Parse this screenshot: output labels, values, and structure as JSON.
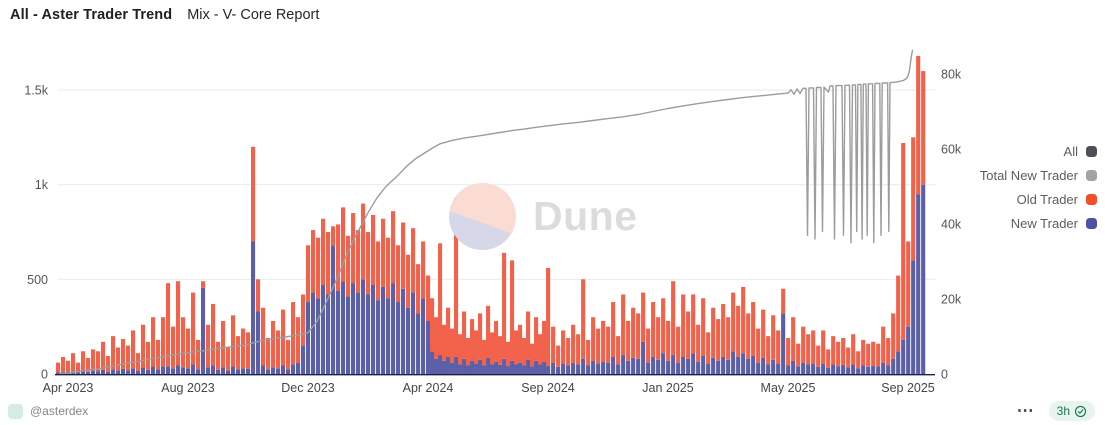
{
  "header": {
    "title": "All - Aster Trader Trend",
    "subtitle": "Mix - V- Core Report"
  },
  "watermark": {
    "brand": "Dune"
  },
  "legend": {
    "items": [
      {
        "label": "All",
        "color": "#4e4e56"
      },
      {
        "label": "Total New Trader",
        "color": "#a3a3a3"
      },
      {
        "label": "Old Trader",
        "color": "#f14e2a"
      },
      {
        "label": "New Trader",
        "color": "#4c52a5"
      }
    ]
  },
  "footer": {
    "handle": "@asterdex",
    "more_icon": "⋯",
    "refresh_age": "3h"
  },
  "chart_data": {
    "type": "bar",
    "note": "stacked daily bars (New Trader bottom, Old Trader top, left axis) plus cumulative Total New Trader line (right axis); values sampled ~5-day resolution",
    "left_axis": {
      "ticks": [
        "0",
        "500",
        "1k",
        "1.5k"
      ],
      "values": [
        0,
        500,
        1000,
        1500
      ],
      "max": 1750
    },
    "right_axis": {
      "ticks": [
        "0",
        "20k",
        "40k",
        "60k",
        "80k"
      ],
      "values": [
        0,
        20,
        40,
        60,
        80
      ],
      "unit": "thousand traders",
      "max": 88
    },
    "x_axis": {
      "ticks": [
        {
          "label": "Apr 2023",
          "m": 0
        },
        {
          "label": "Aug 2023",
          "m": 4
        },
        {
          "label": "Dec 2023",
          "m": 8
        },
        {
          "label": "Apr 2024",
          "m": 12
        },
        {
          "label": "Sep 2024",
          "m": 17
        },
        {
          "label": "Jan 2025",
          "m": 21
        },
        {
          "label": "May 2025",
          "m": 25
        },
        {
          "label": "Sep 2025",
          "m": 29
        }
      ],
      "anchor_months": [
        0,
        4,
        8,
        12,
        17,
        21,
        25,
        29
      ]
    },
    "sampling": {
      "start_m": -0.333,
      "step_m": 0.1667
    },
    "series": [
      {
        "name": "New Trader",
        "type": "bar",
        "axis": "left",
        "color": "#5a5fa8",
        "values": [
          8,
          12,
          10,
          14,
          9,
          16,
          12,
          18,
          15,
          22,
          12,
          25,
          18,
          28,
          20,
          30,
          16,
          34,
          22,
          40,
          25,
          40,
          40,
          30,
          45,
          35,
          30,
          50,
          25,
          455,
          35,
          45,
          22,
          35,
          18,
          40,
          25,
          30,
          28,
          700,
          330,
          45,
          25,
          35,
          30,
          45,
          25,
          50,
          60,
          150,
          380,
          430,
          400,
          470,
          420,
          680,
          440,
          490,
          410,
          480,
          430,
          500,
          420,
          470,
          390,
          460,
          400,
          480,
          380,
          450,
          350,
          430,
          320,
          400,
          280,
          120,
          80,
          100,
          70,
          90,
          60,
          90,
          50,
          80,
          45,
          70,
          55,
          75,
          45,
          85,
          50,
          65,
          48,
          80,
          42,
          70,
          52,
          60,
          45,
          75,
          40,
          70,
          50,
          65,
          42,
          60,
          38,
          55,
          45,
          58,
          50,
          80,
          45,
          70,
          55,
          65,
          60,
          90,
          50,
          100,
          70,
          85,
          80,
          170,
          60,
          90,
          75,
          110,
          70,
          100,
          60,
          90,
          80,
          110,
          65,
          95,
          55,
          85,
          70,
          90,
          75,
          120,
          90,
          110,
          80,
          95,
          60,
          85,
          50,
          75,
          55,
          320,
          45,
          70,
          40,
          60,
          50,
          55,
          38,
          55,
          32,
          50,
          40,
          48,
          35,
          50,
          30,
          45,
          38,
          42,
          40,
          60,
          45,
          80,
          120,
          180,
          250,
          600,
          950,
          1000
        ]
      },
      {
        "name": "Old Trader",
        "type": "bar",
        "axis": "left",
        "color": "#f2614a",
        "values": [
          52,
          78,
          60,
          96,
          51,
          104,
          73,
          112,
          105,
          148,
          83,
          175,
          122,
          157,
          130,
          200,
          94,
          226,
          148,
          260,
          155,
          260,
          440,
          220,
          445,
          265,
          210,
          380,
          155,
          35,
          225,
          325,
          148,
          245,
          122,
          270,
          175,
          210,
          192,
          500,
          170,
          305,
          165,
          245,
          200,
          295,
          155,
          330,
          240,
          270,
          300,
          330,
          320,
          350,
          330,
          100,
          350,
          390,
          320,
          370,
          330,
          400,
          330,
          370,
          310,
          360,
          320,
          380,
          300,
          350,
          280,
          340,
          260,
          300,
          240,
          280,
          220,
          590,
          190,
          260,
          180,
          840,
          160,
          250,
          145,
          220,
          175,
          245,
          135,
          275,
          170,
          215,
          152,
          560,
          128,
          530,
          178,
          200,
          145,
          255,
          120,
          230,
          160,
          215,
          518,
          190,
          112,
          175,
          145,
          202,
          160,
          420,
          135,
          230,
          185,
          215,
          190,
          290,
          150,
          320,
          210,
          265,
          240,
          260,
          180,
          290,
          225,
          290,
          210,
          390,
          190,
          330,
          250,
          310,
          195,
          305,
          165,
          265,
          220,
          280,
          225,
          310,
          270,
          350,
          240,
          285,
          180,
          255,
          150,
          235,
          175,
          130,
          145,
          230,
          120,
          190,
          160,
          175,
          112,
          175,
          98,
          150,
          130,
          142,
          105,
          160,
          90,
          135,
          122,
          128,
          120,
          190,
          145,
          240,
          400,
          1040,
          450,
          650,
          730,
          600
        ]
      },
      {
        "name": "Total New Trader",
        "type": "line",
        "axis": "right",
        "color": "#9c9c9c",
        "points": [
          [
            -0.3,
            0.1
          ],
          [
            0,
            0.25
          ],
          [
            0.5,
            0.8
          ],
          [
            1,
            1.4
          ],
          [
            1.5,
            2.1
          ],
          [
            2,
            2.9
          ],
          [
            2.5,
            3.6
          ],
          [
            3,
            4.4
          ],
          [
            3.5,
            5.1
          ],
          [
            4,
            5.7
          ],
          [
            4.5,
            6.2
          ],
          [
            5,
            6.8
          ],
          [
            5.5,
            7.3
          ],
          [
            6,
            7.9
          ],
          [
            6.3,
            8.6
          ],
          [
            6.6,
            9.1
          ],
          [
            7,
            9.6
          ],
          [
            7.5,
            10.2
          ],
          [
            8,
            11
          ],
          [
            8.3,
            14
          ],
          [
            8.6,
            19
          ],
          [
            9,
            26
          ],
          [
            9.3,
            32
          ],
          [
            9.6,
            37
          ],
          [
            10,
            43
          ],
          [
            10.3,
            47
          ],
          [
            10.6,
            50
          ],
          [
            11,
            53
          ],
          [
            11.3,
            55.5
          ],
          [
            11.6,
            57.5
          ],
          [
            12,
            59.5
          ],
          [
            12.2,
            60.3
          ],
          [
            12.5,
            61.4
          ],
          [
            13,
            62.3
          ],
          [
            13.5,
            62.9
          ],
          [
            14,
            63.4
          ],
          [
            14.5,
            63.9
          ],
          [
            15,
            64.4
          ],
          [
            15.5,
            64.9
          ],
          [
            16,
            65.3
          ],
          [
            16.5,
            65.8
          ],
          [
            17,
            66.2
          ],
          [
            17.5,
            66.7
          ],
          [
            18,
            67.1
          ],
          [
            18.5,
            67.6
          ],
          [
            19,
            68.1
          ],
          [
            19.5,
            68.6
          ],
          [
            20,
            69.2
          ],
          [
            20.5,
            70
          ],
          [
            21,
            70.8
          ],
          [
            21.5,
            71.5
          ],
          [
            22,
            72.1
          ],
          [
            22.5,
            72.7
          ],
          [
            23,
            73.2
          ],
          [
            23.5,
            73.7
          ],
          [
            24,
            74.1
          ],
          [
            24.5,
            74.5
          ],
          [
            25,
            74.9
          ],
          [
            25.1,
            75.8
          ],
          [
            25.2,
            74.6
          ],
          [
            25.3,
            76
          ],
          [
            25.4,
            74.8
          ],
          [
            25.5,
            76.2
          ],
          [
            25.6,
            76.2
          ],
          [
            25.65,
            37
          ],
          [
            25.7,
            76.3
          ],
          [
            25.85,
            76.3
          ],
          [
            25.9,
            36
          ],
          [
            25.95,
            76.4
          ],
          [
            26.1,
            76.4
          ],
          [
            26.15,
            38
          ],
          [
            26.2,
            76.5
          ],
          [
            26.35,
            75.2
          ],
          [
            26.4,
            76.8
          ],
          [
            26.5,
            76.8
          ],
          [
            26.55,
            36
          ],
          [
            26.6,
            76.9
          ],
          [
            26.8,
            76.9
          ],
          [
            26.85,
            37
          ],
          [
            26.9,
            77
          ],
          [
            27.05,
            77
          ],
          [
            27.1,
            35
          ],
          [
            27.15,
            77.1
          ],
          [
            27.25,
            77.1
          ],
          [
            27.29,
            38
          ],
          [
            27.33,
            77.2
          ],
          [
            27.43,
            77.2
          ],
          [
            27.47,
            36
          ],
          [
            27.51,
            77.3
          ],
          [
            27.6,
            77.3
          ],
          [
            27.64,
            37
          ],
          [
            27.68,
            77.4
          ],
          [
            27.82,
            77.4
          ],
          [
            27.86,
            35
          ],
          [
            27.9,
            77.5
          ],
          [
            28.06,
            77.5
          ],
          [
            28.1,
            37
          ],
          [
            28.14,
            77.6
          ],
          [
            28.32,
            77.6
          ],
          [
            28.36,
            38
          ],
          [
            28.4,
            77.7
          ],
          [
            28.55,
            77.8
          ],
          [
            28.7,
            78
          ],
          [
            28.85,
            78.3
          ],
          [
            28.95,
            78.8
          ],
          [
            29,
            79.5
          ],
          [
            29.05,
            81
          ],
          [
            29.1,
            84
          ],
          [
            29.15,
            86.5
          ]
        ]
      },
      {
        "name": "All",
        "type": "legend-only",
        "color": "#4e4e56"
      }
    ]
  }
}
